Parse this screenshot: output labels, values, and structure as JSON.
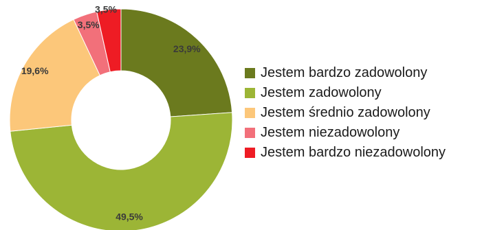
{
  "chart_data": {
    "type": "pie",
    "donut": true,
    "start_angle_deg": 0,
    "direction": "clockwise",
    "legend_position": "right",
    "slices": [
      {
        "name": "Jestem bardzo zadowolony",
        "value": 23.9,
        "label": "23,9%",
        "color": "#6b7a1e"
      },
      {
        "name": "Jestem zadowolony",
        "value": 49.5,
        "label": "49,5%",
        "color": "#9cb536"
      },
      {
        "name": "Jestem średnio zadowolony",
        "value": 19.6,
        "label": "19,6%",
        "color": "#fcc77a"
      },
      {
        "name": "Jestem niezadowolony",
        "value": 3.5,
        "label": "3,5%",
        "color": "#f2707a"
      },
      {
        "name": "Jestem bardzo niezadowolony",
        "value": 3.5,
        "label": "3,5%",
        "color": "#ee1c24"
      }
    ]
  }
}
